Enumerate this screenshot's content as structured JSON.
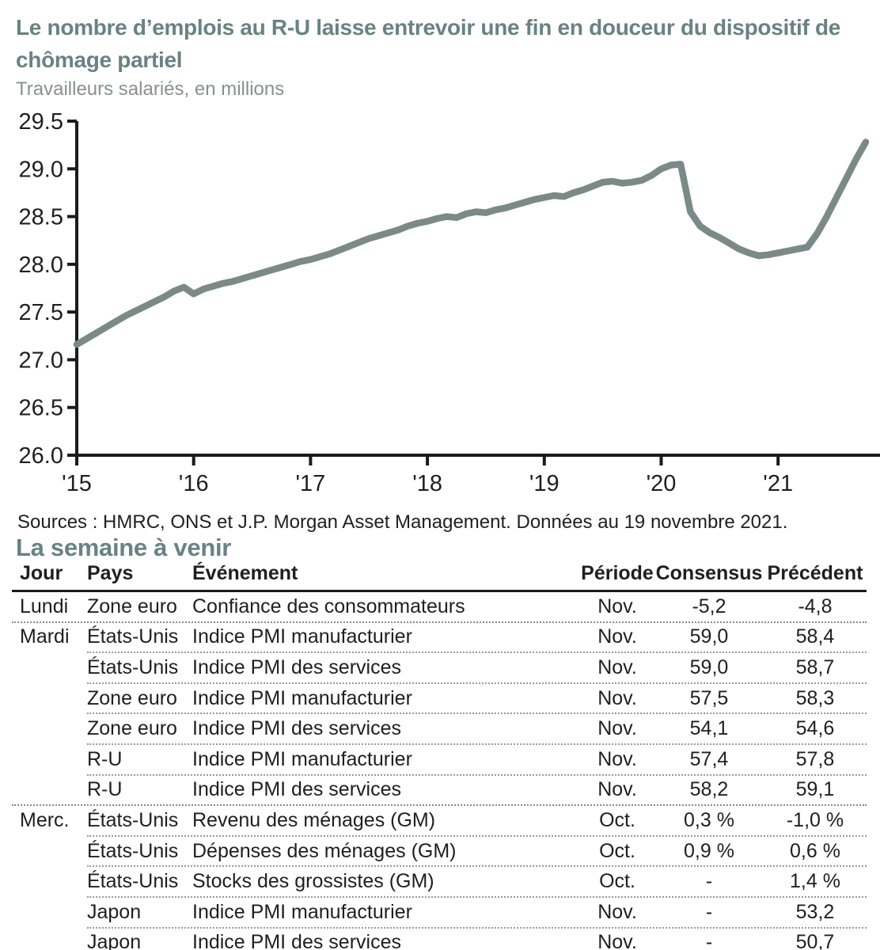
{
  "accent_color": "#698283",
  "subtitle_color": "#8b8f8f",
  "header": {
    "title": "Le nombre d’emplois au R-U laisse entrevoir une fin en douceur du dispositif de chômage partiel",
    "subtitle": "Travailleurs salariés, en millions"
  },
  "chart_data": {
    "type": "line",
    "title": "Le nombre d’emplois au R-U laisse entrevoir une fin en douceur du dispositif de chômage partiel",
    "subtitle": "Travailleurs salariés, en millions",
    "xlabel": "",
    "ylabel": "Travailleurs salariés, en millions",
    "ylim": [
      26.0,
      29.5
    ],
    "y_tick_step": 0.5,
    "y_ticks": [
      26.0,
      26.5,
      27.0,
      27.5,
      28.0,
      28.5,
      29.0,
      29.5
    ],
    "x_tick_labels": [
      "'15",
      "'16",
      "'17",
      "'18",
      "'19",
      "'20",
      "'21"
    ],
    "x_tick_years": [
      2015,
      2016,
      2017,
      2018,
      2019,
      2020,
      2021
    ],
    "x_start_year": 2015,
    "x_frequency": "monthly",
    "x_start_month": "2015-01",
    "x_end_month": "2021-10",
    "grid": false,
    "legend": "none",
    "line_color": "#7b8a88",
    "axis_color": "#1a1a1a",
    "series": [
      {
        "name": "Travailleurs salariés (millions)",
        "values": [
          27.16,
          27.22,
          27.28,
          27.34,
          27.4,
          27.46,
          27.51,
          27.56,
          27.61,
          27.66,
          27.72,
          27.76,
          27.69,
          27.74,
          27.77,
          27.8,
          27.82,
          27.85,
          27.88,
          27.91,
          27.94,
          27.97,
          28.0,
          28.03,
          28.05,
          28.08,
          28.11,
          28.15,
          28.19,
          28.23,
          28.27,
          28.3,
          28.33,
          28.36,
          28.4,
          28.43,
          28.45,
          28.48,
          28.5,
          28.49,
          28.53,
          28.55,
          28.54,
          28.57,
          28.59,
          28.62,
          28.65,
          28.68,
          28.7,
          28.72,
          28.71,
          28.75,
          28.78,
          28.82,
          28.86,
          28.87,
          28.85,
          28.86,
          28.88,
          28.93,
          29.0,
          29.04,
          29.05,
          28.55,
          28.4,
          28.33,
          28.28,
          28.22,
          28.16,
          28.12,
          28.09,
          28.1,
          28.12,
          28.14,
          28.16,
          28.18,
          28.32,
          28.5,
          28.7,
          28.9,
          29.1,
          29.28
        ]
      }
    ]
  },
  "sources": "Sources : HMRC, ONS et J.P. Morgan Asset Management. Données au 19 novembre 2021.",
  "week_ahead": {
    "title": "La semaine à venir",
    "columns": [
      "Jour",
      "Pays",
      "Événement",
      "Période",
      "Consensus",
      "Précédent"
    ],
    "rows": [
      {
        "jour": "Lundi",
        "pays": "Zone euro",
        "evenement": "Confiance des consommateurs",
        "periode": "Nov.",
        "consensus": "-5,2",
        "precedent": "-4,8"
      },
      {
        "jour": "Mardi",
        "pays": "États-Unis",
        "evenement": "Indice PMI manufacturier",
        "periode": "Nov.",
        "consensus": "59,0",
        "precedent": "58,4"
      },
      {
        "jour": "",
        "pays": "États-Unis",
        "evenement": "Indice PMI des services",
        "periode": "Nov.",
        "consensus": "59,0",
        "precedent": "58,7"
      },
      {
        "jour": "",
        "pays": "Zone euro",
        "evenement": "Indice PMI manufacturier",
        "periode": "Nov.",
        "consensus": "57,5",
        "precedent": "58,3"
      },
      {
        "jour": "",
        "pays": "Zone euro",
        "evenement": "Indice PMI des services",
        "periode": "Nov.",
        "consensus": "54,1",
        "precedent": "54,6"
      },
      {
        "jour": "",
        "pays": "R-U",
        "evenement": "Indice PMI manufacturier",
        "periode": "Nov.",
        "consensus": "57,4",
        "precedent": "57,8"
      },
      {
        "jour": "",
        "pays": "R-U",
        "evenement": "Indice PMI des services",
        "periode": "Nov.",
        "consensus": "58,2",
        "precedent": "59,1"
      },
      {
        "jour": "Merc.",
        "pays": "États-Unis",
        "evenement": "Revenu des ménages (GM)",
        "periode": "Oct.",
        "consensus": "0,3 %",
        "precedent": "-1,0 %"
      },
      {
        "jour": "",
        "pays": "États-Unis",
        "evenement": "Dépenses des ménages (GM)",
        "periode": "Oct.",
        "consensus": "0,9 %",
        "precedent": "0,6 %"
      },
      {
        "jour": "",
        "pays": "États-Unis",
        "evenement": "Stocks des grossistes (GM)",
        "periode": "Oct.",
        "consensus": "-",
        "precedent": "1,4 %"
      },
      {
        "jour": "",
        "pays": "Japon",
        "evenement": "Indice PMI manufacturier",
        "periode": "Nov.",
        "consensus": "-",
        "precedent": "53,2"
      },
      {
        "jour": "",
        "pays": "Japon",
        "evenement": "Indice PMI des services",
        "periode": "Nov.",
        "consensus": "-",
        "precedent": "50,7"
      }
    ]
  }
}
